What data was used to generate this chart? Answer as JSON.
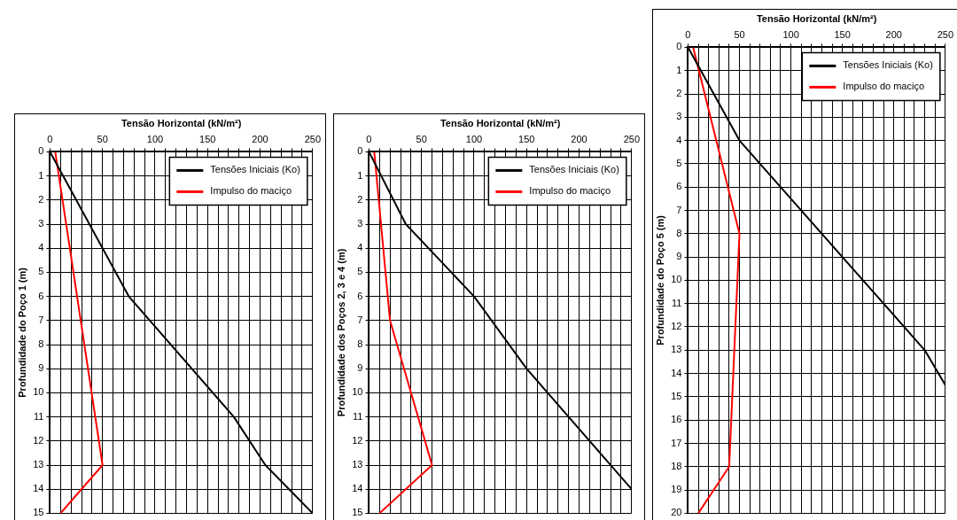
{
  "chart_data": [
    {
      "type": "line",
      "xlabel": "Tensão Horizontal (kN/m²)",
      "ylabel": "Profundidade do Poço 1 (m)",
      "xlim": [
        0,
        250
      ],
      "xticks": [
        0,
        {
          "value": 10,
          "label": null
        },
        {
          "value": 20,
          "label": null
        },
        {
          "value": 30,
          "label": null
        },
        {
          "value": 40,
          "label": null
        },
        50,
        {
          "value": 60,
          "label": null
        },
        {
          "value": 70,
          "label": null
        },
        {
          "value": 80,
          "label": null
        },
        {
          "value": 90,
          "label": null
        },
        100,
        {
          "value": 110,
          "label": null
        },
        {
          "value": 120,
          "label": null
        },
        {
          "value": 130,
          "label": null
        },
        {
          "value": 140,
          "label": null
        },
        150,
        {
          "value": 160,
          "label": null
        },
        {
          "value": 170,
          "label": null
        },
        {
          "value": 180,
          "label": null
        },
        {
          "value": 190,
          "label": null
        },
        200,
        {
          "value": 210,
          "label": null
        },
        {
          "value": 220,
          "label": null
        },
        {
          "value": 230,
          "label": null
        },
        {
          "value": 240,
          "label": null
        },
        250
      ],
      "ylim": [
        15,
        0
      ],
      "yticks": [
        0,
        1,
        2,
        3,
        4,
        5,
        6,
        7,
        8,
        9,
        10,
        11,
        12,
        13,
        14,
        15
      ],
      "grid": true,
      "legend": "top right",
      "marker": "none",
      "series": [
        {
          "name": "Tensões Iniciais (Ko)",
          "color": "#000000",
          "x": [
            0,
            75,
            175,
            205,
            250
          ],
          "values": [
            0,
            6,
            11,
            13,
            15
          ]
        },
        {
          "name": "Impulso do maciço",
          "color": "#ff0000",
          "x": [
            5,
            50,
            10
          ],
          "values": [
            0,
            13,
            15
          ]
        }
      ]
    },
    {
      "type": "line",
      "xlabel": "Tensão Horizontal (kN/m²)",
      "ylabel": "Profundidade dos Poços 2, 3 e 4 (m)",
      "xlim": [
        0,
        250
      ],
      "xticks": [
        0,
        {
          "value": 10,
          "label": null
        },
        {
          "value": 20,
          "label": null
        },
        {
          "value": 30,
          "label": null
        },
        {
          "value": 40,
          "label": null
        },
        50,
        {
          "value": 60,
          "label": null
        },
        {
          "value": 70,
          "label": null
        },
        {
          "value": 80,
          "label": null
        },
        {
          "value": 90,
          "label": null
        },
        100,
        {
          "value": 110,
          "label": null
        },
        {
          "value": 120,
          "label": null
        },
        {
          "value": 130,
          "label": null
        },
        {
          "value": 140,
          "label": null
        },
        150,
        {
          "value": 160,
          "label": null
        },
        {
          "value": 170,
          "label": null
        },
        {
          "value": 180,
          "label": null
        },
        {
          "value": 190,
          "label": null
        },
        200,
        {
          "value": 210,
          "label": null
        },
        {
          "value": 220,
          "label": null
        },
        {
          "value": 230,
          "label": null
        },
        {
          "value": 240,
          "label": null
        },
        250
      ],
      "ylim": [
        15,
        0
      ],
      "yticks": [
        0,
        1,
        2,
        3,
        4,
        5,
        6,
        7,
        8,
        9,
        10,
        11,
        12,
        13,
        14,
        15
      ],
      "grid": true,
      "legend": "top right",
      "marker": "none",
      "series": [
        {
          "name": "Tensões Iniciais (Ko)",
          "color": "#000000",
          "x": [
            0,
            35,
            100,
            150,
            250
          ],
          "values": [
            0,
            3,
            6,
            9,
            14
          ]
        },
        {
          "name": "Impulso do maciço",
          "color": "#ff0000",
          "x": [
            5,
            20,
            60,
            10
          ],
          "values": [
            0,
            7,
            13,
            15
          ]
        }
      ]
    },
    {
      "type": "line",
      "xlabel": "Tensão Horizontal (kN/m²)",
      "ylabel": "Profundidade do Poço 5 (m)",
      "xlim": [
        0,
        250
      ],
      "xticks": [
        0,
        {
          "value": 10,
          "label": null
        },
        {
          "value": 20,
          "label": null
        },
        {
          "value": 30,
          "label": null
        },
        {
          "value": 40,
          "label": null
        },
        50,
        {
          "value": 60,
          "label": null
        },
        {
          "value": 70,
          "label": null
        },
        {
          "value": 80,
          "label": null
        },
        {
          "value": 90,
          "label": null
        },
        100,
        {
          "value": 110,
          "label": null
        },
        {
          "value": 120,
          "label": null
        },
        {
          "value": 130,
          "label": null
        },
        {
          "value": 140,
          "label": null
        },
        150,
        {
          "value": 160,
          "label": null
        },
        {
          "value": 170,
          "label": null
        },
        {
          "value": 180,
          "label": null
        },
        {
          "value": 190,
          "label": null
        },
        200,
        {
          "value": 210,
          "label": null
        },
        {
          "value": 220,
          "label": null
        },
        {
          "value": 230,
          "label": null
        },
        {
          "value": 240,
          "label": null
        },
        250
      ],
      "ylim": [
        20,
        0
      ],
      "yticks": [
        0,
        1,
        2,
        3,
        4,
        5,
        6,
        7,
        8,
        9,
        10,
        11,
        12,
        13,
        14,
        15,
        16,
        17,
        18,
        19,
        20
      ],
      "grid": true,
      "legend": "top right",
      "marker": "none",
      "series": [
        {
          "name": "Tensões Iniciais (Ko)",
          "color": "#000000",
          "x": [
            0,
            50,
            150,
            230,
            250
          ],
          "values": [
            0,
            4,
            9,
            13,
            14.5
          ]
        },
        {
          "name": "Impulso do maciço",
          "color": "#ff0000",
          "x": [
            5,
            50,
            40,
            10
          ],
          "values": [
            0,
            8,
            18,
            20
          ]
        }
      ]
    }
  ]
}
